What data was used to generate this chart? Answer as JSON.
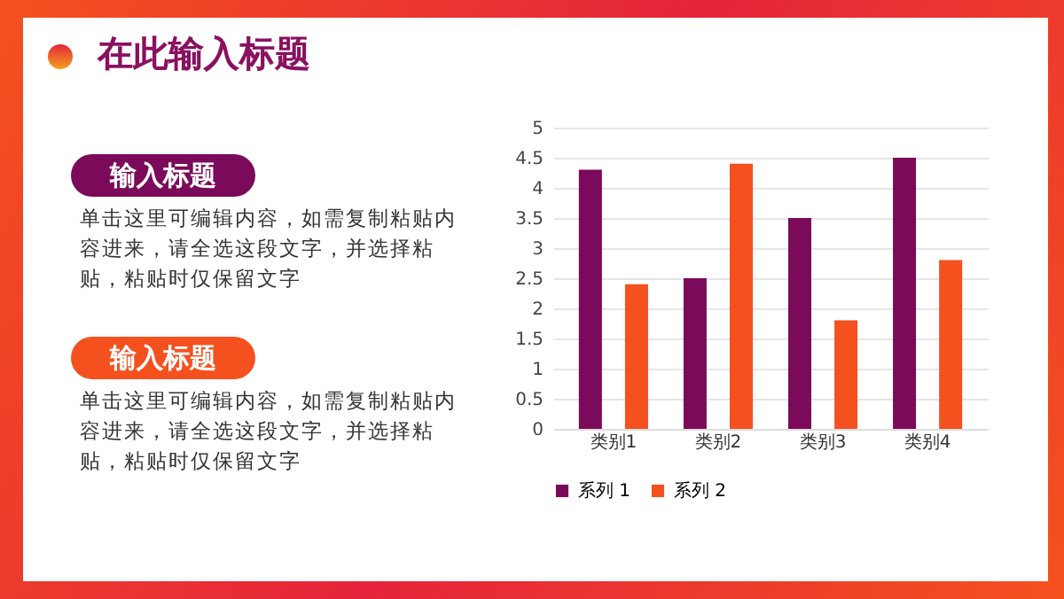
{
  "chart_data": {
    "type": "bar",
    "title": "在此输入标题",
    "categories": [
      "类别1",
      "类别2",
      "类别3",
      "类别4"
    ],
    "series": [
      {
        "name": "系列 1",
        "color": "#7b0a5b",
        "values": [
          4.3,
          2.5,
          3.5,
          4.5
        ]
      },
      {
        "name": "系列 2",
        "color": "#f4511e",
        "values": [
          2.4,
          4.4,
          1.8,
          2.8
        ]
      }
    ],
    "ylim": [
      0,
      5
    ],
    "yticks": [
      0,
      0.5,
      1,
      1.5,
      2,
      2.5,
      3,
      3.5,
      4,
      4.5,
      5
    ],
    "grid": "y",
    "legend": "bottom",
    "annotations": [
      "输入标题",
      "单击这里可编辑内容，如需复制粘贴内容进来，请全选这段文字，并选择粘贴，粘贴时仅保留文字",
      "输入标题",
      "单击这里可编辑内容，如需复制粘贴内容进来，请全选这段文字，并选择粘贴，粘贴时仅保留文字"
    ]
  }
}
